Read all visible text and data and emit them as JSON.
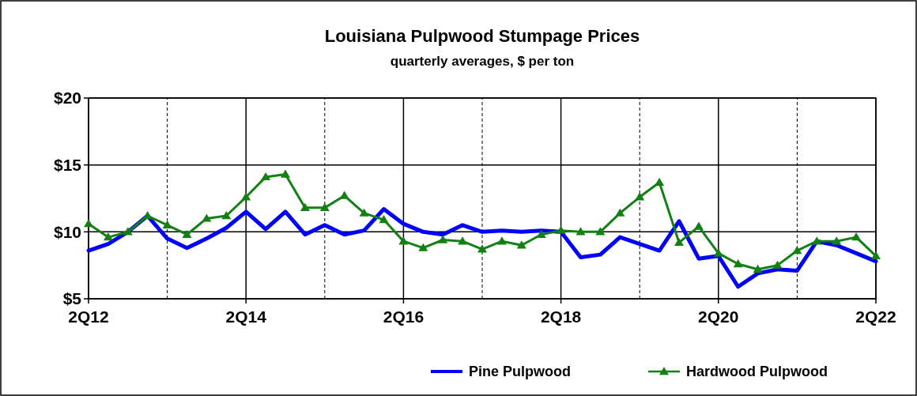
{
  "chart_data": {
    "type": "line",
    "title": "Louisiana Pulpwood Stumpage Prices",
    "subtitle": "quarterly averages, $ per ton",
    "categories": [
      "2Q12",
      null,
      null,
      null,
      null,
      null,
      null,
      null,
      "2Q14",
      null,
      null,
      null,
      null,
      null,
      null,
      null,
      "2Q16",
      null,
      null,
      null,
      null,
      null,
      null,
      null,
      "2Q18",
      null,
      null,
      null,
      null,
      null,
      null,
      null,
      "2Q20",
      null,
      null,
      null,
      null,
      null,
      null,
      null,
      "2Q22"
    ],
    "ylim": [
      5,
      20
    ],
    "yticks": [
      {
        "value": 5,
        "label": "$5"
      },
      {
        "value": 10,
        "label": "$10"
      },
      {
        "value": 15,
        "label": "$15"
      },
      {
        "value": 20,
        "label": "$20"
      }
    ],
    "grid": true,
    "legend": "bottom right",
    "series": [
      {
        "name": "Pine Pulpwood",
        "color": "#0000ff",
        "marker": "none",
        "values": [
          8.6,
          9.1,
          10.0,
          11.2,
          9.5,
          8.8,
          9.5,
          10.3,
          11.5,
          10.2,
          11.5,
          9.8,
          10.5,
          9.8,
          10.1,
          11.7,
          10.6,
          10.0,
          9.8,
          10.5,
          10.0,
          10.1,
          10.0,
          10.1,
          10.0,
          8.1,
          8.3,
          9.6,
          9.1,
          8.6,
          10.8,
          8.0,
          8.2,
          5.9,
          6.9,
          7.2,
          7.1,
          9.3,
          9.0,
          8.4,
          7.8
        ]
      },
      {
        "name": "Hardwood Pulpwood",
        "color": "#138013",
        "marker": "triangle",
        "values": [
          10.6,
          9.6,
          10.0,
          11.2,
          10.5,
          9.8,
          11.0,
          11.2,
          12.6,
          14.1,
          14.3,
          11.8,
          11.8,
          12.7,
          11.4,
          10.9,
          9.3,
          8.8,
          9.4,
          9.3,
          8.7,
          9.3,
          9.0,
          9.8,
          10.1,
          10.0,
          10.0,
          11.4,
          12.6,
          13.7,
          9.2,
          10.4,
          8.4,
          7.6,
          7.2,
          7.5,
          8.6,
          9.3,
          9.3,
          9.6,
          8.2
        ]
      }
    ]
  }
}
